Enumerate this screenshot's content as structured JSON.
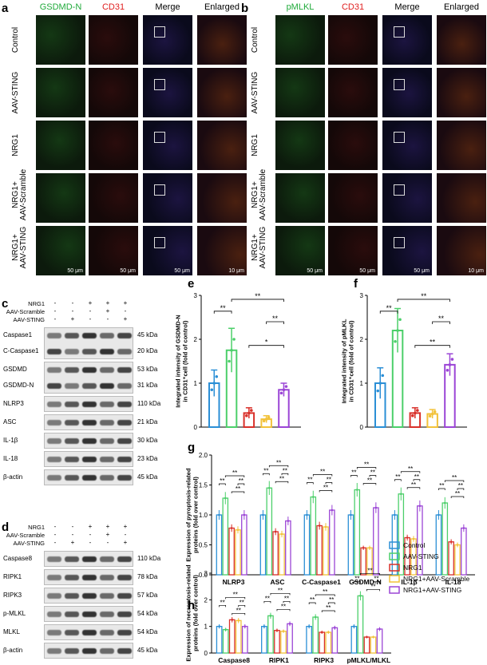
{
  "panel_a": {
    "letter": "a",
    "columns": [
      {
        "label": "GSDMD-N",
        "color": "#1faa3a"
      },
      {
        "label": "CD31",
        "color": "#e02020"
      },
      {
        "label": "Merge",
        "color": "#000000"
      },
      {
        "label": "Enlarged",
        "color": "#000000"
      }
    ],
    "rows": [
      "Control",
      "AAV-STING",
      "NRG1",
      "NRG1+\nAAV-Scramble",
      "NRG1+\nAAV-STING"
    ],
    "scale_bars": [
      "50 μm",
      "50 μm",
      "50 μm",
      "10 μm"
    ]
  },
  "panel_b": {
    "letter": "b",
    "columns": [
      {
        "label": "pMLKL",
        "color": "#1faa3a"
      },
      {
        "label": "CD31",
        "color": "#e02020"
      },
      {
        "label": "Merge",
        "color": "#000000"
      },
      {
        "label": "Enlarged",
        "color": "#000000"
      }
    ],
    "rows": [
      "Control",
      "AAV-STING",
      "NRG1",
      "NRG1+\nAAV-Scramble",
      "NRG1+\nAAV-STING"
    ],
    "scale_bars": [
      "50 μm",
      "50 μm",
      "50 μm",
      "10 μm"
    ]
  },
  "panel_c": {
    "letter": "c",
    "treatments": [
      {
        "label": "NRG1",
        "signs": [
          "-",
          "-",
          "+",
          "+",
          "+"
        ]
      },
      {
        "label": "AAV-Scramble",
        "signs": [
          "-",
          "-",
          "-",
          "+",
          "-"
        ]
      },
      {
        "label": "AAV-STING",
        "signs": [
          "-",
          "+",
          "-",
          "-",
          "+"
        ]
      }
    ],
    "blots": [
      {
        "labels": [
          "Caspase1",
          "C-Caspase1"
        ],
        "kda": [
          "45 kDa",
          "20 kDa"
        ]
      },
      {
        "labels": [
          "GSDMD",
          "GSDMD-N"
        ],
        "kda": [
          "53 kDa",
          "31 kDa"
        ]
      },
      {
        "labels": [
          "NLRP3"
        ],
        "kda": [
          "110 kDa"
        ]
      },
      {
        "labels": [
          "ASC"
        ],
        "kda": [
          "21 kDa"
        ]
      },
      {
        "labels": [
          "IL-1β"
        ],
        "kda": [
          "30 kDa"
        ]
      },
      {
        "labels": [
          "IL-18"
        ],
        "kda": [
          "23 kDa"
        ]
      },
      {
        "labels": [
          "β-actin"
        ],
        "kda": [
          "45 kDa"
        ]
      }
    ]
  },
  "panel_d": {
    "letter": "d",
    "treatments": [
      {
        "label": "NRG1",
        "signs": [
          "-",
          "-",
          "+",
          "+",
          "+"
        ]
      },
      {
        "label": "AAV-Scramble",
        "signs": [
          "-",
          "-",
          "-",
          "+",
          "-"
        ]
      },
      {
        "label": "AAV-STING",
        "signs": [
          "-",
          "+",
          "-",
          "-",
          "+"
        ]
      }
    ],
    "blots": [
      {
        "labels": [
          "Caspase8"
        ],
        "kda": [
          "110 kDa"
        ]
      },
      {
        "labels": [
          "RIPK1"
        ],
        "kda": [
          "78 kDa"
        ]
      },
      {
        "labels": [
          "RIPK3"
        ],
        "kda": [
          "57 kDa"
        ]
      },
      {
        "labels": [
          "p-MLKL"
        ],
        "kda": [
          "54 kDa"
        ]
      },
      {
        "labels": [
          "MLKL"
        ],
        "kda": [
          "54 kDa"
        ]
      },
      {
        "labels": [
          "β-actin"
        ],
        "kda": [
          "45 kDa"
        ]
      }
    ]
  },
  "legend": [
    {
      "label": "Control",
      "color": "#2b8fd6"
    },
    {
      "label": "AAV-STING",
      "color": "#4ccf6a"
    },
    {
      "label": "NRG1",
      "color": "#d9302a"
    },
    {
      "label": "NRG1+AAV-Scramble",
      "color": "#f2c23a"
    },
    {
      "label": "NRG1+AAV-STING",
      "color": "#9b45d6"
    }
  ],
  "chart_data": [
    {
      "panel": "e",
      "type": "bar",
      "ylabel": "Integrated intensity of GSDMD-N in CD31⁺cell (fold of control)",
      "ylim": [
        0,
        3
      ],
      "yticks": [
        0,
        1,
        2,
        3
      ],
      "values": [
        1.0,
        1.75,
        0.32,
        0.18,
        0.85
      ],
      "errors": [
        0.3,
        0.5,
        0.12,
        0.08,
        0.15
      ],
      "significance": [
        "**",
        "**",
        "**",
        "*"
      ]
    },
    {
      "panel": "f",
      "type": "bar",
      "ylabel": "Integrated intensity of pMLKL in CD31⁺cell (fold of control)",
      "ylim": [
        0,
        3
      ],
      "yticks": [
        0,
        1,
        2,
        3
      ],
      "values": [
        1.0,
        2.2,
        0.32,
        0.3,
        1.42
      ],
      "errors": [
        0.35,
        0.5,
        0.12,
        0.1,
        0.25
      ],
      "significance": [
        "**",
        "**",
        "**",
        "**"
      ]
    },
    {
      "panel": "g",
      "type": "bar",
      "ylabel": "Expression of pyroptosis-related proteins (fold over control)",
      "ylim": [
        0,
        2
      ],
      "yticks": [
        0.0,
        0.5,
        1.0,
        1.5,
        2.0
      ],
      "categories": [
        "NLRP3",
        "ASC",
        "C-Caspase1",
        "GSDMD-N",
        "IL-1β",
        "IL-18"
      ],
      "series": [
        {
          "name": "Control",
          "values": [
            1.0,
            1.0,
            1.0,
            1.0,
            1.0,
            1.0
          ]
        },
        {
          "name": "AAV-STING",
          "values": [
            1.28,
            1.45,
            1.3,
            1.42,
            1.35,
            1.2
          ]
        },
        {
          "name": "NRG1",
          "values": [
            0.78,
            0.72,
            0.82,
            0.45,
            0.62,
            0.55
          ]
        },
        {
          "name": "NRG1+AAV-Scramble",
          "values": [
            0.75,
            0.68,
            0.8,
            0.45,
            0.6,
            0.5
          ]
        },
        {
          "name": "NRG1+AAV-STING",
          "values": [
            1.0,
            0.9,
            1.08,
            1.12,
            1.15,
            0.78
          ]
        }
      ],
      "significance": [
        "**",
        "**",
        "**",
        "**"
      ]
    },
    {
      "panel": "h",
      "type": "bar",
      "ylabel": "Expression of necroptosis-related proteins (fold over control)",
      "ylim": [
        0,
        3
      ],
      "yticks": [
        0,
        1,
        2,
        3
      ],
      "categories": [
        "Caspase8",
        "RIPK1",
        "RIPK3",
        "pMLKL/MLKL"
      ],
      "series": [
        {
          "name": "Control",
          "values": [
            1.0,
            1.0,
            1.0,
            1.0
          ]
        },
        {
          "name": "AAV-STING",
          "values": [
            0.88,
            1.4,
            1.35,
            2.15
          ]
        },
        {
          "name": "NRG1",
          "values": [
            1.25,
            0.85,
            0.78,
            0.6
          ]
        },
        {
          "name": "NRG1+AAV-Scramble",
          "values": [
            1.22,
            0.82,
            0.78,
            0.6
          ]
        },
        {
          "name": "NRG1+AAV-STING",
          "values": [
            1.0,
            1.1,
            0.95,
            0.9
          ]
        }
      ],
      "significance": [
        "**",
        "**",
        "**",
        "**"
      ]
    }
  ]
}
